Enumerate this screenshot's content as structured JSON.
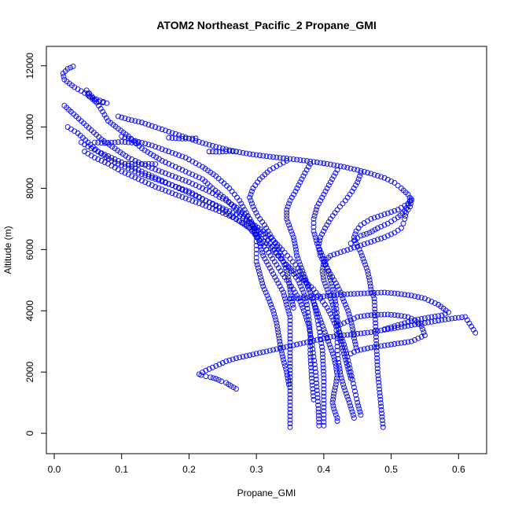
{
  "chart_data": {
    "type": "scatter",
    "title": "ATOM2 Northeast_Pacific_2 Propane_GMI",
    "xlabel": "Propane_GMI",
    "ylabel": "Altitude (m)",
    "xlim": [
      0.0,
      0.63
    ],
    "ylim": [
      0,
      12000
    ],
    "x_ticks": [
      "0.0",
      "0.1",
      "0.2",
      "0.3",
      "0.4",
      "0.5",
      "0.6"
    ],
    "y_ticks": [
      "0",
      "2000",
      "4000",
      "6000",
      "8000",
      "10000",
      "12000"
    ],
    "grid": false,
    "marker": "open-circle",
    "color": "#0000ff",
    "series": [
      {
        "x": [
          0.028,
          0.02,
          0.013,
          0.015,
          0.03,
          0.05,
          0.06,
          0.072,
          0.078,
          0.052,
          0.048,
          0.06,
          0.072,
          0.08,
          0.095,
          0.11,
          0.13,
          0.16,
          0.19,
          0.22,
          0.235,
          0.255,
          0.27,
          0.285,
          0.295,
          0.31,
          0.32,
          0.33,
          0.34,
          0.355,
          0.37,
          0.385,
          0.395,
          0.405,
          0.412,
          0.418,
          0.42,
          0.42,
          0.422,
          0.425,
          0.43,
          0.438,
          0.445
        ],
        "y": [
          11980,
          11900,
          11750,
          11550,
          11300,
          11050,
          10850,
          10800,
          10780,
          11000,
          11200,
          10900,
          10500,
          10200,
          9950,
          9700,
          9300,
          8900,
          8600,
          8300,
          8000,
          7650,
          7300,
          7000,
          6750,
          6500,
          6200,
          5900,
          5600,
          5300,
          5000,
          4700,
          4400,
          4100,
          3800,
          3500,
          3100,
          2700,
          2300,
          1900,
          1500,
          1000,
          500
        ]
      },
      {
        "x": [
          0.015,
          0.025,
          0.04,
          0.055,
          0.07,
          0.09,
          0.11,
          0.14,
          0.17,
          0.2,
          0.23,
          0.255,
          0.275,
          0.29,
          0.3,
          0.305,
          0.31,
          0.32,
          0.33,
          0.34,
          0.345,
          0.35,
          0.35,
          0.35,
          0.35,
          0.35
        ],
        "y": [
          10700,
          10500,
          10200,
          9900,
          9600,
          9300,
          9000,
          8700,
          8450,
          8200,
          7900,
          7600,
          7300,
          7000,
          6600,
          6200,
          5800,
          5400,
          5000,
          4600,
          4200,
          3800,
          3200,
          2400,
          1500,
          200
        ]
      },
      {
        "x": [
          0.02,
          0.035,
          0.05,
          0.065,
          0.085,
          0.105,
          0.125,
          0.15,
          0.175,
          0.2,
          0.225,
          0.25,
          0.27,
          0.29,
          0.305,
          0.318,
          0.33,
          0.342,
          0.355,
          0.365,
          0.372,
          0.378,
          0.382,
          0.385,
          0.388,
          0.39,
          0.392,
          0.393
        ],
        "y": [
          10000,
          9800,
          9500,
          9200,
          8900,
          8700,
          8500,
          8300,
          8100,
          7900,
          7600,
          7300,
          7000,
          6700,
          6300,
          5900,
          5500,
          5100,
          4700,
          4300,
          3900,
          3500,
          3000,
          2500,
          2000,
          1400,
          800,
          250
        ]
      },
      {
        "x": [
          0.04,
          0.055,
          0.075,
          0.095,
          0.12,
          0.145,
          0.17,
          0.195,
          0.22,
          0.245,
          0.27,
          0.29,
          0.31,
          0.325,
          0.338,
          0.35,
          0.362,
          0.372,
          0.38,
          0.386,
          0.39,
          0.394,
          0.398,
          0.4,
          0.4
        ],
        "y": [
          9500,
          9300,
          9100,
          8900,
          8650,
          8400,
          8150,
          7900,
          7650,
          7400,
          7150,
          6900,
          6600,
          6300,
          6000,
          5700,
          5400,
          5000,
          4600,
          4200,
          3800,
          3300,
          2700,
          1800,
          250
        ]
      },
      {
        "x": [
          0.045,
          0.06,
          0.08,
          0.1,
          0.125,
          0.15,
          0.18,
          0.21,
          0.24,
          0.265,
          0.285,
          0.3,
          0.315,
          0.328,
          0.34,
          0.352,
          0.362,
          0.37,
          0.375,
          0.378,
          0.38,
          0.38,
          0.382,
          0.385
        ],
        "y": [
          9200,
          9000,
          8800,
          8550,
          8300,
          8050,
          7800,
          7550,
          7300,
          7050,
          6800,
          6500,
          6200,
          5900,
          5600,
          5300,
          5000,
          4600,
          4200,
          3700,
          3200,
          2600,
          1800,
          1100
        ]
      },
      {
        "x": [
          0.1,
          0.12,
          0.145,
          0.17,
          0.195,
          0.22,
          0.24,
          0.26,
          0.275,
          0.285,
          0.295,
          0.3,
          0.3,
          0.3,
          0.305,
          0.31,
          0.318,
          0.325,
          0.33,
          0.333,
          0.336,
          0.34,
          0.345,
          0.348
        ],
        "y": [
          9700,
          9550,
          9400,
          9200,
          9000,
          8700,
          8400,
          8000,
          7600,
          7200,
          6800,
          6400,
          6000,
          5600,
          5200,
          4800,
          4400,
          4000,
          3600,
          3200,
          2800,
          2400,
          2000,
          1600
        ]
      },
      {
        "x": [
          0.06,
          0.075,
          0.09,
          0.1,
          0.11,
          0.125
        ],
        "y": [
          9500,
          9480,
          9500,
          9520,
          9500,
          9480
        ]
      },
      {
        "x": [
          0.11,
          0.125,
          0.14,
          0.15
        ],
        "y": [
          8800,
          8780,
          8800,
          8790
        ]
      },
      {
        "x": [
          0.095,
          0.11,
          0.13,
          0.15,
          0.17,
          0.19,
          0.21,
          0.23,
          0.25,
          0.27,
          0.29,
          0.31,
          0.33,
          0.35,
          0.37,
          0.39,
          0.41,
          0.43,
          0.45,
          0.47,
          0.49,
          0.505,
          0.515,
          0.525,
          0.53,
          0.528,
          0.522,
          0.52,
          0.518,
          0.515,
          0.505,
          0.49,
          0.47,
          0.45,
          0.43,
          0.41,
          0.4,
          0.398,
          0.4,
          0.405,
          0.41,
          0.415,
          0.418,
          0.42,
          0.425,
          0.43,
          0.435,
          0.44,
          0.445,
          0.45,
          0.455
        ],
        "y": [
          10350,
          10250,
          10150,
          10000,
          9850,
          9700,
          9550,
          9420,
          9300,
          9200,
          9120,
          9060,
          9010,
          8960,
          8910,
          8850,
          8780,
          8700,
          8600,
          8480,
          8340,
          8180,
          8000,
          7800,
          7600,
          7400,
          7200,
          7000,
          6850,
          6700,
          6550,
          6400,
          6250,
          6100,
          5950,
          5800,
          5600,
          5300,
          5000,
          4700,
          4400,
          4100,
          3800,
          3500,
          3200,
          2900,
          2500,
          2000,
          1500,
          1000,
          600
        ]
      },
      {
        "x": [
          0.17,
          0.19,
          0.21
        ],
        "y": [
          9650,
          9620,
          9630
        ]
      },
      {
        "x": [
          0.23,
          0.245,
          0.26,
          0.27
        ],
        "y": [
          9200,
          9190,
          9210,
          9200
        ]
      },
      {
        "x": [
          0.38,
          0.372,
          0.365,
          0.358,
          0.35,
          0.345,
          0.345,
          0.35,
          0.355,
          0.358,
          0.36,
          0.365,
          0.37,
          0.375,
          0.38,
          0.385,
          0.39,
          0.395,
          0.4,
          0.405,
          0.41,
          0.415,
          0.418,
          0.42,
          0.418,
          0.415,
          0.413,
          0.415,
          0.418,
          0.42,
          0.42
        ],
        "y": [
          8800,
          8500,
          8200,
          7900,
          7600,
          7300,
          7000,
          6700,
          6400,
          6100,
          5800,
          5500,
          5200,
          4900,
          4600,
          4300,
          4000,
          3700,
          3400,
          3100,
          2800,
          2500,
          2200,
          1900,
          1600,
          1300,
          1000,
          800,
          600,
          500,
          400
        ]
      },
      {
        "x": [
          0.42,
          0.41,
          0.4,
          0.39,
          0.385,
          0.385,
          0.39,
          0.398,
          0.405,
          0.41,
          0.415,
          0.418,
          0.42,
          0.422,
          0.425,
          0.43,
          0.435,
          0.44
        ],
        "y": [
          8600,
          8200,
          7800,
          7400,
          7000,
          6600,
          6200,
          5800,
          5400,
          5000,
          4600,
          4200,
          3800,
          3400,
          3000,
          2600,
          2200,
          1800
        ]
      },
      {
        "x": [
          0.455,
          0.45,
          0.442,
          0.432,
          0.42,
          0.41,
          0.402,
          0.395,
          0.392,
          0.395,
          0.402,
          0.41,
          0.418,
          0.425,
          0.43,
          0.436,
          0.44,
          0.443,
          0.445,
          0.448
        ],
        "y": [
          8500,
          8200,
          7900,
          7600,
          7300,
          7000,
          6700,
          6400,
          6100,
          5800,
          5500,
          5200,
          4900,
          4600,
          4300,
          4000,
          3700,
          3400,
          3100,
          2800
        ]
      },
      {
        "x": [
          0.345,
          0.32,
          0.305,
          0.295,
          0.29,
          0.295,
          0.302,
          0.312,
          0.32,
          0.328,
          0.335,
          0.34,
          0.345,
          0.348,
          0.35,
          0.352,
          0.355
        ],
        "y": [
          8900,
          8600,
          8300,
          8000,
          7700,
          7400,
          7100,
          6800,
          6500,
          6200,
          5900,
          5600,
          5300,
          5000,
          4700,
          4400,
          4100
        ]
      },
      {
        "x": [
          0.44,
          0.445,
          0.455,
          0.468,
          0.48,
          0.495,
          0.51,
          0.52,
          0.525,
          0.528,
          0.53,
          0.525,
          0.51,
          0.49,
          0.47,
          0.455,
          0.448,
          0.445,
          0.448,
          0.455,
          0.46,
          0.465,
          0.468,
          0.47,
          0.475,
          0.48,
          0.488
        ],
        "y": [
          6200,
          6300,
          6450,
          6550,
          6700,
          6850,
          7050,
          7250,
          7450,
          7600,
          7650,
          7500,
          7300,
          7150,
          7000,
          6800,
          6600,
          6400,
          6200,
          5900,
          5600,
          5300,
          5000,
          4700,
          4400,
          2000,
          200
        ]
      },
      {
        "x": [
          0.27,
          0.262,
          0.255,
          0.248,
          0.24,
          0.232,
          0.225,
          0.218,
          0.215,
          0.225,
          0.24,
          0.255,
          0.27,
          0.29,
          0.31,
          0.33,
          0.35,
          0.37,
          0.39,
          0.41,
          0.43,
          0.45,
          0.47,
          0.49,
          0.51,
          0.53,
          0.55,
          0.57,
          0.59,
          0.61,
          0.625
        ],
        "y": [
          1450,
          1550,
          1650,
          1700,
          1780,
          1830,
          1860,
          1900,
          1930,
          2050,
          2200,
          2350,
          2450,
          2550,
          2650,
          2750,
          2850,
          2950,
          3050,
          3150,
          3200,
          3250,
          3300,
          3380,
          3450,
          3530,
          3600,
          3680,
          3750,
          3800,
          3280
        ]
      },
      {
        "x": [
          0.35,
          0.365,
          0.38,
          0.395,
          0.41,
          0.43,
          0.45,
          0.47,
          0.49,
          0.51,
          0.53,
          0.55,
          0.57,
          0.585,
          0.575,
          0.56,
          0.54,
          0.52,
          0.505,
          0.49
        ],
        "y": [
          4400,
          4420,
          4440,
          4460,
          4500,
          4540,
          4560,
          4580,
          4600,
          4560,
          4500,
          4400,
          4200,
          3950,
          3850,
          3800,
          3720,
          3600,
          3500,
          3400
        ]
      },
      {
        "x": [
          0.42,
          0.43,
          0.44,
          0.45,
          0.465,
          0.48,
          0.495,
          0.51,
          0.525,
          0.535,
          0.545,
          0.55,
          0.53,
          0.5,
          0.47,
          0.45,
          0.44
        ],
        "y": [
          3500,
          3600,
          3700,
          3800,
          3850,
          3870,
          3880,
          3850,
          3800,
          3700,
          3500,
          3200,
          3000,
          2900,
          2800,
          2700,
          2600
        ]
      }
    ]
  }
}
